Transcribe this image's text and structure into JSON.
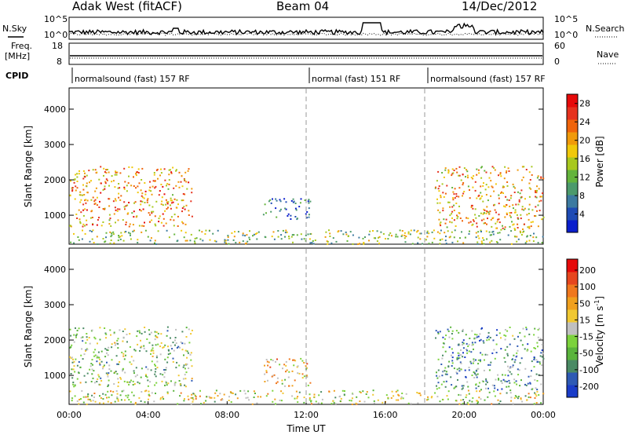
{
  "header": {
    "station": "Adak West (fitACF)",
    "beam": "Beam 04",
    "date": "14/Dec/2012"
  },
  "strips": {
    "nsky_label": "N.Sky",
    "nsky_ticks": [
      "10^5",
      "10^0"
    ],
    "nsearch_label": "N.Search",
    "nsearch_ticks": [
      "10^5",
      "10^0"
    ],
    "freq_label_1": "Freq.",
    "freq_label_2": "[MHz]",
    "freq_ticks": [
      "18",
      "8"
    ],
    "nave_label": "Nave",
    "nave_ticks": [
      "60",
      "0"
    ],
    "cpid_label": "CPID"
  },
  "cpid_segments": [
    {
      "start": 0.0,
      "end": 12.0,
      "label": "normalsound (fast) 157 RF"
    },
    {
      "start": 12.0,
      "end": 18.0,
      "label": "normal (fast) 151 RF"
    },
    {
      "start": 18.0,
      "end": 24.0,
      "label": "normalsound (fast) 157 RF"
    }
  ],
  "x_axis": {
    "label": "Time UT",
    "ticks": [
      "00:00",
      "04:00",
      "08:00",
      "12:00",
      "16:00",
      "20:00",
      "00:00"
    ],
    "range_hours": [
      0,
      24
    ]
  },
  "chart_data": [
    {
      "type": "heatmap",
      "name": "power-panel",
      "ylabel": "Slant Range [km]",
      "yticks": [
        "1000",
        "2000",
        "3000",
        "4000"
      ],
      "ylim": [
        180,
        4600
      ],
      "colorbar": {
        "label": "Power [dB]",
        "ticks": [
          "4",
          "8",
          "12",
          "16",
          "20",
          "24",
          "28"
        ],
        "range": [
          0,
          30
        ],
        "colors": [
          "#0a1ecc",
          "#1e4bb4",
          "#3c7aa0",
          "#4c9a6c",
          "#64b43c",
          "#a8c81e",
          "#f0c80a",
          "#f09a0a",
          "#f0640a",
          "#e6321e",
          "#e60a0a"
        ]
      },
      "scatter_regions": [
        {
          "t0": 0.0,
          "t1": 6.2,
          "r0": 700,
          "r1": 2400,
          "level": 0.7
        },
        {
          "t0": 0.0,
          "t1": 24.0,
          "r0": 200,
          "r1": 600,
          "level": 0.45
        },
        {
          "t0": 9.8,
          "t1": 12.2,
          "r0": 900,
          "r1": 1500,
          "level": 0.2
        },
        {
          "t0": 18.5,
          "t1": 24.0,
          "r0": 600,
          "r1": 2400,
          "level": 0.65
        }
      ]
    },
    {
      "type": "heatmap",
      "name": "velocity-panel",
      "ylabel": "Slant Range [km]",
      "yticks": [
        "1000",
        "2000",
        "3000",
        "4000"
      ],
      "ylim": [
        180,
        4600
      ],
      "colorbar": {
        "label": "Velocity [m s",
        "label_sup": "-1",
        "label_close": "]",
        "ticks": [
          "200",
          "100",
          "50",
          "15",
          "-15",
          "-50",
          "-100",
          "-200"
        ],
        "colors": [
          "#1a3cc8",
          "#2e5ab4",
          "#4a8a64",
          "#5ab43c",
          "#7cd23c",
          "#c0c0c0",
          "#f0c832",
          "#f0a01e",
          "#f0781e",
          "#e6461e",
          "#e60a0a"
        ]
      },
      "scatter_regions": [
        {
          "t0": 0.0,
          "t1": 6.2,
          "r0": 700,
          "r1": 2400,
          "level": 0.4
        },
        {
          "t0": 0.0,
          "t1": 24.0,
          "r0": 200,
          "r1": 600,
          "level": 0.5
        },
        {
          "t0": 9.8,
          "t1": 12.2,
          "r0": 700,
          "r1": 1500,
          "level": 0.6
        },
        {
          "t0": 18.5,
          "t1": 24.0,
          "r0": 600,
          "r1": 2400,
          "level": 0.3
        }
      ]
    }
  ]
}
